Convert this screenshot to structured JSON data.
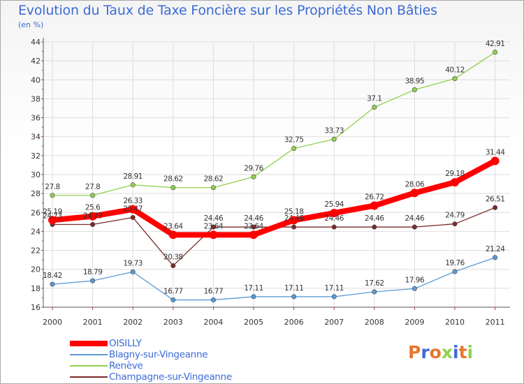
{
  "title": "Evolution du Taux de Taxe Foncière sur les Propriétés Non Bâties",
  "subtitle": "(en %)",
  "chart_data": {
    "type": "line",
    "categories": [
      "2000",
      "2001",
      "2002",
      "2003",
      "2004",
      "2005",
      "2006",
      "2007",
      "2008",
      "2009",
      "2010",
      "2011"
    ],
    "ylim": [
      16,
      44
    ],
    "yticks": [
      16,
      18,
      20,
      22,
      24,
      26,
      28,
      30,
      32,
      34,
      36,
      38,
      40,
      42,
      44
    ],
    "grid": true,
    "series": [
      {
        "name": "OISILLY",
        "color": "#ff0000",
        "width": 8,
        "values": [
          25.19,
          25.6,
          26.33,
          23.64,
          23.64,
          23.64,
          25.18,
          25.94,
          26.72,
          28.06,
          29.18,
          31.44
        ],
        "labels": [
          "25.19",
          "25.6",
          "26.33",
          "23.64",
          "23.64",
          "23.64",
          "25.18",
          "25.94",
          "26.72",
          "28.06",
          "29.18",
          "31.44"
        ]
      },
      {
        "name": "Blagny-sur-Vingeanne",
        "color": "#5b9bd5",
        "width": 1.3,
        "values": [
          18.42,
          18.79,
          19.73,
          16.77,
          16.77,
          17.11,
          17.11,
          17.11,
          17.62,
          17.96,
          19.76,
          21.24
        ],
        "labels": [
          "18.42",
          "18.79",
          "19.73",
          "16.77",
          "16.77",
          "17.11",
          "17.11",
          "17.11",
          "17.62",
          "17.96",
          "19.76",
          "21.24"
        ]
      },
      {
        "name": "Renève",
        "color": "#8fd14f",
        "width": 1.3,
        "values": [
          27.8,
          27.8,
          28.91,
          28.62,
          28.62,
          29.76,
          32.75,
          33.73,
          37.1,
          38.95,
          40.12,
          42.91
        ],
        "labels": [
          "27.8",
          "27.8",
          "28.91",
          "28.62",
          "28.62",
          "29.76",
          "32.75",
          "33.73",
          "37.1",
          "38.95",
          "40.12",
          "42.91"
        ]
      },
      {
        "name": "Champagne-sur-Vingeanne",
        "color": "#7b2b2b",
        "width": 1.3,
        "values": [
          24.73,
          24.73,
          25.47,
          20.38,
          24.46,
          24.46,
          24.46,
          24.46,
          24.46,
          24.46,
          24.79,
          26.51
        ],
        "labels": [
          "24.73",
          "24.73",
          "25.47",
          "20.38",
          "24.46",
          "24.46",
          "24.46",
          "24.46",
          "24.46",
          "24.46",
          "24.79",
          "26.51"
        ]
      }
    ]
  },
  "legend": [
    {
      "label": "OISILLY",
      "color": "#ff0000",
      "thickness": 8
    },
    {
      "label": "Blagny-sur-Vingeanne",
      "color": "#5b9bd5",
      "thickness": 2
    },
    {
      "label": "Renève",
      "color": "#8fd14f",
      "thickness": 2
    },
    {
      "label": "Champagne-sur-Vingeanne",
      "color": "#7b2b2b",
      "thickness": 2
    }
  ],
  "logo": {
    "text": "Proxiti",
    "colors": [
      "#e8762c",
      "#3b6bd6",
      "#e8762c",
      "#8fd14f",
      "#3b6bd6",
      "#e8762c",
      "#8fd14f"
    ]
  }
}
